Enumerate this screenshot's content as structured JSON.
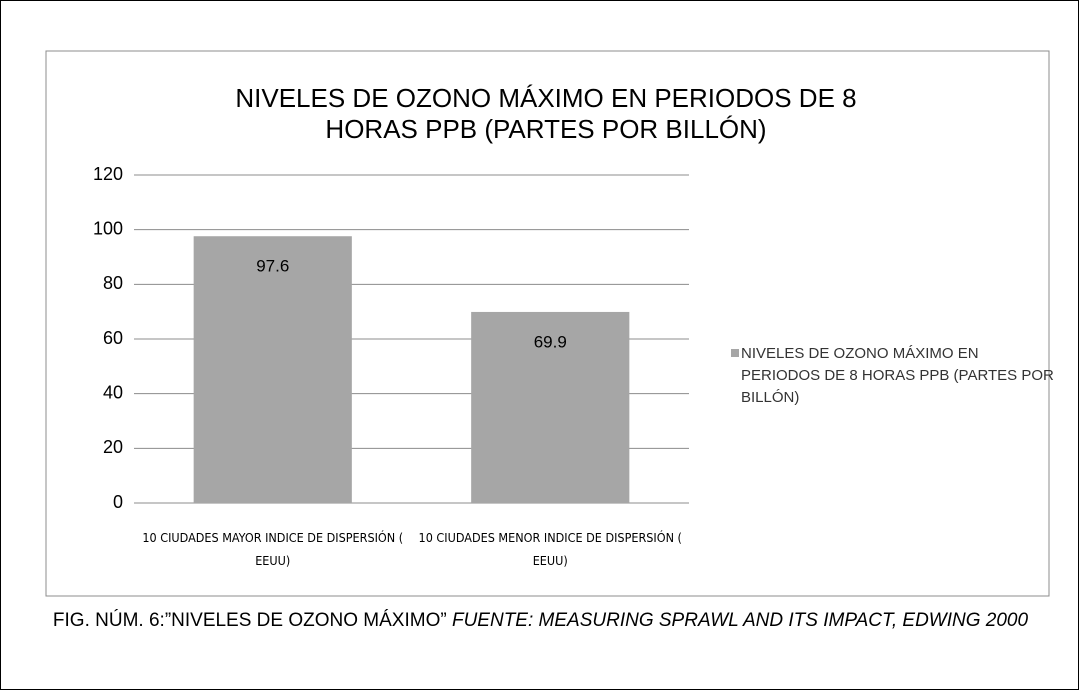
{
  "chart_data": {
    "type": "bar",
    "title": "NIVELES DE OZONO MÁXIMO EN PERIODOS DE 8 HORAS PPB (PARTES POR BILLÓN)",
    "categories": [
      "10 CIUDADES MAYOR INDICE DE DISPERSIÓN ( EEUU)",
      "10 CIUDADES MENOR INDICE DE DISPERSIÓN ( EEUU)"
    ],
    "series": [
      {
        "name": "NIVELES DE OZONO MÁXIMO EN PERIODOS DE 8 HORAS PPB (PARTES POR BILLÓN)",
        "color": "#a6a6a6",
        "values": [
          97.6,
          69.9
        ]
      }
    ],
    "ylim": [
      0,
      120
    ],
    "yticks": [
      0,
      20,
      40,
      60,
      80,
      100,
      120
    ],
    "grid": true,
    "legend": "right"
  },
  "caption": {
    "text": "FIG. NÚM. 6:”NIVELES DE OZONO MÁXIMO”",
    "source": "FUENTE: MEASURING SPRAWL AND ITS IMPACT, EDWING 2000"
  }
}
